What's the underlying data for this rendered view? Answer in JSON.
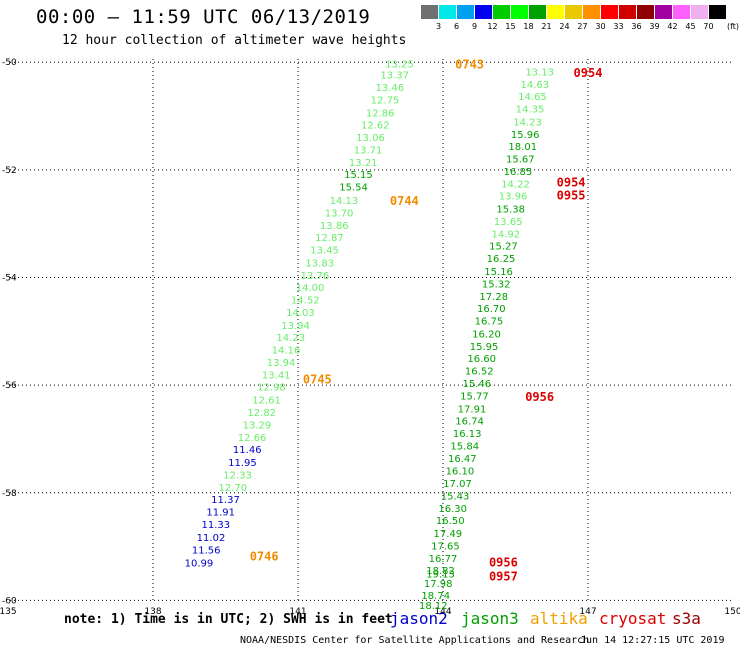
{
  "title": "00:00 – 11:59 UTC 06/13/2019",
  "subtitle": "12 hour collection of altimeter wave heights",
  "note": "note: 1) Time is in UTC; 2) SWH is in feet",
  "credit": "NOAA/NESDIS Center for Satellite Applications and Research",
  "timestamp": "Jun 14 12:27:15 UTC 2019",
  "legend": [
    {
      "name": "jason2",
      "color": "#0000cc"
    },
    {
      "name": "jason3",
      "color": "#00a000"
    },
    {
      "name": "altika",
      "color": "#f0a000"
    },
    {
      "name": "cryosat",
      "color": "#dd0000"
    },
    {
      "name": "s3a",
      "color": "#a00000"
    }
  ],
  "color_scale": {
    "unit": "(ft)",
    "labels": [
      "3",
      "6",
      "9",
      "12",
      "15",
      "18",
      "21",
      "24",
      "27",
      "30",
      "33",
      "36",
      "39",
      "42",
      "45",
      "70"
    ],
    "colors": [
      "#707070",
      "#00e8e8",
      "#00a0f0",
      "#0000f0",
      "#00cc00",
      "#00ff00",
      "#00a000",
      "#ffff00",
      "#e8c800",
      "#ff9000",
      "#ff0000",
      "#d00000",
      "#900000",
      "#a000a0",
      "#ff60ff",
      "#f0b0f0",
      "#000000"
    ]
  },
  "chart_data": {
    "type": "scatter",
    "xlabel": "",
    "ylabel": "",
    "xlim": [
      135,
      150
    ],
    "ylim": [
      -60.03,
      -49.94
    ],
    "x_ticks": [
      "135",
      "138",
      "141",
      "144",
      "147",
      "150"
    ],
    "y_ticks": [
      "-50",
      "-52",
      "-54",
      "-56",
      "-58",
      "-60"
    ],
    "levels": [
      {
        "max": 12,
        "color": "#0000cc"
      },
      {
        "max": 15,
        "color": "#66ee66"
      },
      {
        "max": 99,
        "color": "#00a000"
      }
    ],
    "series": [
      {
        "points": [
          [
            143.1,
            -50.02,
            13.25
          ],
          [
            143.0,
            -50.23,
            13.37
          ],
          [
            142.9,
            -50.46,
            13.46
          ],
          [
            142.8,
            -50.69,
            12.75
          ],
          [
            142.7,
            -50.93,
            12.86
          ],
          [
            142.6,
            -51.16,
            12.62
          ],
          [
            142.5,
            -51.39,
            13.06
          ],
          [
            142.45,
            -51.62,
            13.71
          ],
          [
            142.35,
            -51.85,
            13.21
          ],
          [
            142.25,
            -52.08,
            15.15
          ],
          [
            142.15,
            -52.31,
            15.54
          ],
          [
            141.95,
            -52.56,
            14.13
          ],
          [
            141.85,
            -52.79,
            13.7
          ],
          [
            141.75,
            -53.02,
            13.86
          ],
          [
            141.65,
            -53.25,
            12.87
          ],
          [
            141.55,
            -53.48,
            13.45
          ],
          [
            141.45,
            -53.72,
            13.83
          ],
          [
            141.35,
            -53.95,
            13.76
          ],
          [
            141.25,
            -54.18,
            14.0
          ],
          [
            141.15,
            -54.41,
            14.52
          ],
          [
            141.05,
            -54.64,
            14.03
          ],
          [
            140.95,
            -54.88,
            13.94
          ],
          [
            140.85,
            -55.11,
            14.23
          ],
          [
            140.75,
            -55.34,
            14.16
          ],
          [
            140.65,
            -55.57,
            13.94
          ],
          [
            140.55,
            -55.8,
            13.41
          ],
          [
            140.45,
            -56.03,
            12.98
          ],
          [
            140.35,
            -56.27,
            12.61
          ],
          [
            140.25,
            -56.5,
            12.82
          ],
          [
            140.15,
            -56.73,
            13.29
          ],
          [
            140.05,
            -56.96,
            12.66
          ],
          [
            139.95,
            -57.19,
            11.46
          ],
          [
            139.85,
            -57.43,
            11.95
          ],
          [
            139.75,
            -57.66,
            12.33
          ],
          [
            139.65,
            -57.89,
            12.7
          ],
          [
            139.5,
            -58.12,
            11.37
          ],
          [
            139.4,
            -58.35,
            11.91
          ],
          [
            139.3,
            -58.58,
            11.33
          ],
          [
            139.2,
            -58.82,
            11.02
          ],
          [
            139.1,
            -59.05,
            11.56
          ],
          [
            138.95,
            -59.3,
            10.99
          ]
        ]
      },
      {
        "points": [
          [
            146.0,
            -50.17,
            13.13
          ],
          [
            145.9,
            -50.4,
            14.63
          ],
          [
            145.85,
            -50.63,
            14.65
          ],
          [
            145.8,
            -50.86,
            14.35
          ],
          [
            145.75,
            -51.1,
            14.23
          ],
          [
            145.7,
            -51.33,
            15.96
          ],
          [
            145.65,
            -51.56,
            18.01
          ],
          [
            145.6,
            -51.79,
            15.67
          ],
          [
            145.55,
            -52.02,
            16.85
          ],
          [
            145.5,
            -52.25,
            14.22
          ],
          [
            145.45,
            -52.48,
            13.96
          ],
          [
            145.4,
            -52.72,
            15.38
          ],
          [
            145.35,
            -52.95,
            13.65
          ],
          [
            145.3,
            -53.18,
            14.92
          ],
          [
            145.25,
            -53.41,
            15.27
          ],
          [
            145.2,
            -53.64,
            16.25
          ],
          [
            145.15,
            -53.88,
            15.16
          ],
          [
            145.1,
            -54.11,
            15.32
          ],
          [
            145.05,
            -54.34,
            17.28
          ],
          [
            145.0,
            -54.57,
            16.7
          ],
          [
            144.95,
            -54.8,
            16.75
          ],
          [
            144.9,
            -55.04,
            16.2
          ],
          [
            144.85,
            -55.27,
            15.95
          ],
          [
            144.8,
            -55.5,
            16.6
          ],
          [
            144.75,
            -55.73,
            16.52
          ],
          [
            144.7,
            -55.96,
            15.46
          ],
          [
            144.65,
            -56.19,
            15.77
          ],
          [
            144.6,
            -56.43,
            17.91
          ],
          [
            144.55,
            -56.66,
            16.74
          ],
          [
            144.5,
            -56.89,
            16.13
          ],
          [
            144.45,
            -57.12,
            15.84
          ],
          [
            144.4,
            -57.35,
            16.47
          ],
          [
            144.35,
            -57.59,
            16.1
          ],
          [
            144.3,
            -57.82,
            17.07
          ],
          [
            144.25,
            -58.05,
            15.43
          ],
          [
            144.2,
            -58.28,
            16.3
          ],
          [
            144.15,
            -58.51,
            16.5
          ],
          [
            144.1,
            -58.75,
            17.49
          ],
          [
            144.05,
            -58.98,
            17.65
          ],
          [
            144.0,
            -59.21,
            16.77
          ],
          [
            143.95,
            -59.44,
            18.82
          ],
          [
            143.95,
            -59.5,
            19.13
          ],
          [
            143.9,
            -59.68,
            17.98
          ],
          [
            143.85,
            -59.9,
            18.74
          ],
          [
            143.8,
            -60.09,
            18.12
          ]
        ]
      }
    ],
    "annotations": [
      {
        "text": "0743",
        "x": 144.55,
        "y": -50.02,
        "color": "#f08c00"
      },
      {
        "text": "0744",
        "x": 143.2,
        "y": -52.56,
        "color": "#f08c00"
      },
      {
        "text": "0745",
        "x": 141.4,
        "y": -55.88,
        "color": "#f08c00"
      },
      {
        "text": "0746",
        "x": 140.3,
        "y": -59.17,
        "color": "#f08c00"
      },
      {
        "text": "0954",
        "x": 147.0,
        "y": -50.18,
        "color": "#dd0000"
      },
      {
        "text": "0954",
        "x": 146.65,
        "y": -52.22,
        "color": "#dd0000"
      },
      {
        "text": "0955",
        "x": 146.65,
        "y": -52.46,
        "color": "#dd0000"
      },
      {
        "text": "0956",
        "x": 146.0,
        "y": -56.2,
        "color": "#dd0000"
      },
      {
        "text": "0956",
        "x": 145.25,
        "y": -59.28,
        "color": "#dd0000"
      },
      {
        "text": "0957",
        "x": 145.25,
        "y": -59.54,
        "color": "#dd0000"
      }
    ]
  }
}
